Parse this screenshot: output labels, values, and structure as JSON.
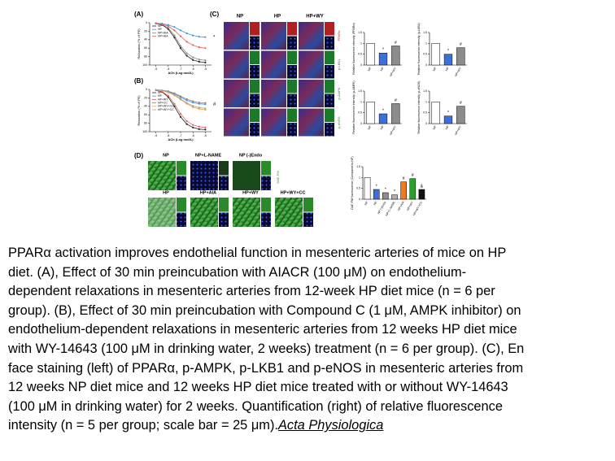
{
  "figure": {
    "panels": [
      "(A)",
      "(B)",
      "(C)",
      "(D)"
    ],
    "c_columns": [
      "NP",
      "HP",
      "HP+WY"
    ],
    "c_rows": [
      "PPARα",
      "p-LKB1",
      "p-AMPK",
      "p-eNOS"
    ],
    "d_row1": [
      "NP",
      "NP+L-NAME",
      "NP (-)Endo"
    ],
    "d_row2": [
      "HP",
      "HP+AIA",
      "HP+WY",
      "HP+WY+CC"
    ],
    "d_stain": "DAF-FM"
  },
  "chart_data": [
    {
      "type": "line",
      "xlabel": "ACh (Log mol/L)",
      "ylabel": "Relaxation (% of PE)",
      "x": [
        -9,
        -8.5,
        -8,
        -7.5,
        -7,
        -6.5,
        -6,
        -5.5,
        -5
      ],
      "xlim": [
        -9.5,
        -4.5
      ],
      "xticks": [
        -9,
        -8,
        -7,
        -6,
        -5
      ],
      "ylim": [
        0,
        100
      ],
      "yticks": [
        0,
        20,
        40,
        60,
        80,
        100
      ],
      "inverted": true,
      "annotation": "*",
      "series": [
        {
          "name": "NP",
          "color": "#222222",
          "values": [
            2,
            5,
            15,
            35,
            60,
            78,
            88,
            92,
            94
          ]
        },
        {
          "name": "HP",
          "color": "#4a90d9",
          "values": [
            1,
            2,
            5,
            10,
            18,
            25,
            30,
            33,
            34
          ]
        },
        {
          "name": "NP+AIA",
          "color": "#888888",
          "values": [
            2,
            4,
            12,
            30,
            55,
            72,
            82,
            87,
            89
          ]
        },
        {
          "name": "HP+AIA",
          "color": "#e06060",
          "values": [
            1,
            3,
            8,
            18,
            32,
            45,
            53,
            58,
            60
          ]
        }
      ]
    },
    {
      "type": "line",
      "xlabel": "ACh (Log mol/L)",
      "ylabel": "Relaxation (% of PE)",
      "x": [
        -9,
        -8.5,
        -8,
        -7.5,
        -7,
        -6.5,
        -6,
        -5.5,
        -5
      ],
      "xlim": [
        -9.5,
        -4.5
      ],
      "xticks": [
        -9,
        -8,
        -7,
        -6,
        -5
      ],
      "ylim": [
        0,
        100
      ],
      "yticks": [
        0,
        20,
        40,
        60,
        80,
        100
      ],
      "inverted": true,
      "annotation": "#",
      "series": [
        {
          "name": "NP",
          "color": "#222222",
          "values": [
            2,
            6,
            18,
            40,
            65,
            82,
            90,
            94,
            95
          ]
        },
        {
          "name": "HP",
          "color": "#4a90d9",
          "values": [
            1,
            2,
            5,
            10,
            18,
            26,
            31,
            34,
            35
          ]
        },
        {
          "name": "HP+WY",
          "color": "#e06060",
          "values": [
            2,
            5,
            15,
            34,
            58,
            75,
            84,
            88,
            90
          ]
        },
        {
          "name": "HP+CC",
          "color": "#888888",
          "values": [
            1,
            2,
            4,
            9,
            16,
            23,
            28,
            31,
            32
          ]
        },
        {
          "name": "HP+WY+CC",
          "color": "#f0a040",
          "values": [
            1,
            3,
            7,
            14,
            24,
            34,
            42,
            46,
            48
          ]
        },
        {
          "name": "HP+WY+CC",
          "color": "#a0a0a0",
          "values": [
            1,
            2,
            6,
            12,
            22,
            32,
            39,
            43,
            45
          ]
        }
      ]
    },
    {
      "type": "bar",
      "ylabel": "Relative fluorescence intensity (PPARα)",
      "categories": [
        "NP",
        "HP",
        "HP+WY"
      ],
      "values": [
        1.0,
        0.55,
        0.88
      ],
      "colors": [
        "#ffffff",
        "#3d6fd8",
        "#8c8c8c"
      ],
      "markers": [
        null,
        "*",
        "#"
      ],
      "ylim": [
        0,
        1.5
      ],
      "yticks": [
        0,
        0.5,
        1,
        1.5
      ]
    },
    {
      "type": "bar",
      "ylabel": "Relative fluorescence intensity (p-LKB1)",
      "categories": [
        "NP",
        "HP",
        "HP+WY"
      ],
      "values": [
        1.0,
        0.5,
        0.8
      ],
      "colors": [
        "#ffffff",
        "#3d6fd8",
        "#8c8c8c"
      ],
      "markers": [
        null,
        "*",
        "#"
      ],
      "ylim": [
        0,
        1.5
      ],
      "yticks": [
        0,
        0.5,
        1,
        1.5
      ]
    },
    {
      "type": "bar",
      "ylabel": "Relative fluorescence intensity (p-AMPK)",
      "categories": [
        "NP",
        "HP",
        "HP+WY"
      ],
      "values": [
        1.0,
        0.45,
        0.92
      ],
      "colors": [
        "#ffffff",
        "#3d6fd8",
        "#8c8c8c"
      ],
      "markers": [
        null,
        "*",
        "#"
      ],
      "ylim": [
        0,
        1.5
      ],
      "yticks": [
        0,
        0.5,
        1,
        1.5
      ]
    },
    {
      "type": "bar",
      "ylabel": "Relative fluorescence intensity (p-eNOS)",
      "categories": [
        "NP",
        "HP",
        "HP+WY"
      ],
      "values": [
        1.0,
        0.35,
        0.8
      ],
      "colors": [
        "#ffffff",
        "#3d6fd8",
        "#8c8c8c"
      ],
      "markers": [
        null,
        "*",
        "#"
      ],
      "ylim": [
        0,
        1.5
      ],
      "yticks": [
        0,
        0.5,
        1,
        1.5
      ]
    },
    {
      "type": "bar",
      "ylabel": "DAF-FM fluorescence (Compared to NP)",
      "categories": [
        "NP",
        "HP",
        "NP (-)Endo",
        "NP+L-NAME",
        "HP+AIA",
        "HP+WY",
        "HP+WY+CC"
      ],
      "values": [
        1.0,
        0.45,
        0.3,
        0.2,
        0.8,
        0.95,
        0.45
      ],
      "colors": [
        "#ffffff",
        "#3d6fd8",
        "#8c8c8c",
        "#b0b0b0",
        "#f07a20",
        "#2ca02c",
        "#111111"
      ],
      "markers": [
        null,
        "*",
        "*",
        "*",
        "#",
        "#",
        "&"
      ],
      "ylim": [
        0,
        1.5
      ],
      "yticks": [
        0,
        0.5,
        1,
        1.5
      ]
    }
  ],
  "caption": {
    "lines": [
      "PPARα activation improves endothelial function in mesenteric arteries of mice on HP",
      "diet. (A), Effect of 30 min preincubation with AIACR (100 μM) on endothelium-",
      "dependent relaxations in mesenteric arteries from 12-week HP diet mice (n = 6 per",
      "group). (B), Effect of 30 min preincubation with Compound C (1 μM, AMPK inhibitor) on",
      "endothelium-dependent relaxations in mesenteric arteries from 12 weeks HP diet mice",
      "with WY-14643 (100 μM in drinking water, 2 weeks) treatment (n = 6 per group). (C), En",
      "face staining (left) of PPARα, p-AMPK, p-LKB1 and p-eNOS in mesenteric arteries from",
      "12 weeks NP diet mice and 12 weeks HP diet mice treated with or without WY-14643",
      "(100 μM in drinking water) for 2 weeks. Quantification (right) of relative fluorescence",
      "intensity (n = 5 per group; scale bar = 25 μm)."
    ],
    "source": "Acta Physiologica"
  }
}
